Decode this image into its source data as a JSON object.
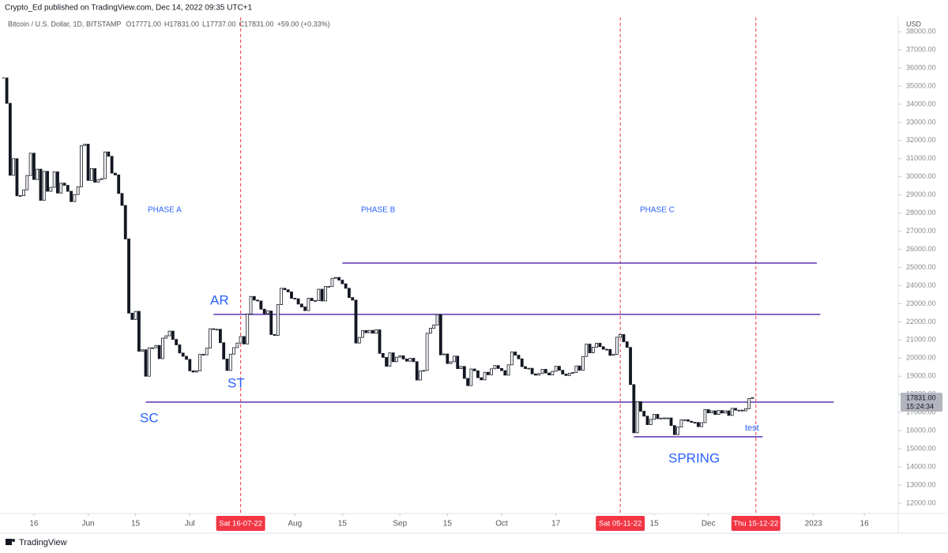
{
  "header": "Crypto_Ed published on TradingView.com, Dec 14, 2022 09:35 UTC+1",
  "footer": "TradingView",
  "chart_data": {
    "type": "candlestick",
    "legend": {
      "ohlc": [
        "O17771.00",
        "H17831.00",
        "L17737.00",
        "C17831.00"
      ],
      "change": "+59.00 (+0.33%)"
    },
    "currency": "USD",
    "price_tag": "17831.00",
    "countdown": "15:24:34",
    "color": "#131722",
    "up_fill": "#ffffff",
    "xlim": [
      "2022-05-06",
      "2023-01-26"
    ],
    "ylim": [
      11430,
      38790
    ],
    "grid": false,
    "yticks": [
      {
        "value": 12000,
        "label": "12000.00"
      },
      {
        "value": 13000,
        "label": "13000.00"
      },
      {
        "value": 14000,
        "label": "14000.00"
      },
      {
        "value": 15000,
        "label": "15000.00"
      },
      {
        "value": 16000,
        "label": "16000.00"
      },
      {
        "value": 17000,
        "label": "17000.00"
      },
      {
        "value": 18000,
        "label": "18000.00"
      },
      {
        "value": 19000,
        "label": "19000.00"
      },
      {
        "value": 20000,
        "label": "20000.00"
      },
      {
        "value": 21000,
        "label": "21000.00"
      },
      {
        "value": 22000,
        "label": "22000.00"
      },
      {
        "value": 23000,
        "label": "23000.00"
      },
      {
        "value": 24000,
        "label": "24000.00"
      },
      {
        "value": 25000,
        "label": "25000.00"
      },
      {
        "value": 26000,
        "label": "26000.00"
      },
      {
        "value": 27000,
        "label": "27000.00"
      },
      {
        "value": 28000,
        "label": "28000.00"
      },
      {
        "value": 29000,
        "label": "29000.00"
      },
      {
        "value": 30000,
        "label": "30000.00"
      },
      {
        "value": 31000,
        "label": "31000.00"
      },
      {
        "value": 32000,
        "label": "32000.00"
      },
      {
        "value": 33000,
        "label": "33000.00"
      },
      {
        "value": 34000,
        "label": "34000.00"
      },
      {
        "value": 35000,
        "label": "35000.00"
      },
      {
        "value": 36000,
        "label": "36000.00"
      },
      {
        "value": 37000,
        "label": "37000.00"
      },
      {
        "value": 38000,
        "label": "38000.00"
      }
    ],
    "xticks": [
      {
        "value": "2022-05-16",
        "label": "16"
      },
      {
        "value": "2022-06-01",
        "label": "Jun"
      },
      {
        "value": "2022-06-15",
        "label": "15"
      },
      {
        "value": "2022-07-01",
        "label": "Jul"
      },
      {
        "value": "2022-08-01",
        "label": "Aug"
      },
      {
        "value": "2022-08-15",
        "label": "15"
      },
      {
        "value": "2022-09-01",
        "label": "Sep"
      },
      {
        "value": "2022-09-15",
        "label": "15"
      },
      {
        "value": "2022-10-01",
        "label": "Oct"
      },
      {
        "value": "2022-10-17",
        "label": "17"
      },
      {
        "value": "2022-11-15",
        "label": "15"
      },
      {
        "value": "2022-12-01",
        "label": "Dec"
      },
      {
        "value": "2023-01-01",
        "label": "2023"
      },
      {
        "value": "2023-01-16",
        "label": "16"
      }
    ],
    "markers": [
      {
        "x": "2022-07-16",
        "label": "Sat 16-07-22"
      },
      {
        "x": "2022-11-05",
        "label": "Sat 05-11-22"
      },
      {
        "x": "2022-12-15",
        "label": "Thu 15-12-22"
      }
    ],
    "levels": [
      {
        "price": 25240,
        "from": "2022-08-15",
        "to": "2023-01-02",
        "color": "#5e35b1"
      },
      {
        "price": 22410,
        "from": "2022-07-08",
        "to": "2023-01-03",
        "color": "#5e35b1"
      },
      {
        "price": 17575,
        "from": "2022-06-18",
        "to": "2023-01-07",
        "color": "#5e35b1"
      },
      {
        "price": 15660,
        "from": "2022-11-09",
        "to": "2022-12-17",
        "color": "#5e35b1"
      }
    ],
    "annotations": [
      "PHASE A",
      "PHASE B",
      "PHASE C",
      "AR",
      "ST",
      "SC",
      "SPRING",
      "test"
    ],
    "x": [
      "2022-05-07",
      "2022-05-08",
      "2022-05-09",
      "2022-05-10",
      "2022-05-11",
      "2022-05-12",
      "2022-05-13",
      "2022-05-14",
      "2022-05-15",
      "2022-05-16",
      "2022-05-17",
      "2022-05-18",
      "2022-05-19",
      "2022-05-20",
      "2022-05-21",
      "2022-05-22",
      "2022-05-23",
      "2022-05-24",
      "2022-05-25",
      "2022-05-26",
      "2022-05-27",
      "2022-05-28",
      "2022-05-29",
      "2022-05-30",
      "2022-05-31",
      "2022-06-01",
      "2022-06-02",
      "2022-06-03",
      "2022-06-04",
      "2022-06-05",
      "2022-06-06",
      "2022-06-07",
      "2022-06-08",
      "2022-06-09",
      "2022-06-10",
      "2022-06-11",
      "2022-06-12",
      "2022-06-13",
      "2022-06-14",
      "2022-06-15",
      "2022-06-16",
      "2022-06-17",
      "2022-06-18",
      "2022-06-19",
      "2022-06-20",
      "2022-06-21",
      "2022-06-22",
      "2022-06-23",
      "2022-06-24",
      "2022-06-25",
      "2022-06-26",
      "2022-06-27",
      "2022-06-28",
      "2022-06-29",
      "2022-06-30",
      "2022-07-01",
      "2022-07-02",
      "2022-07-03",
      "2022-07-04",
      "2022-07-05",
      "2022-07-06",
      "2022-07-07",
      "2022-07-08",
      "2022-07-09",
      "2022-07-10",
      "2022-07-11",
      "2022-07-12",
      "2022-07-13",
      "2022-07-14",
      "2022-07-15",
      "2022-07-16",
      "2022-07-17",
      "2022-07-18",
      "2022-07-19",
      "2022-07-20",
      "2022-07-21",
      "2022-07-22",
      "2022-07-23",
      "2022-07-24",
      "2022-07-25",
      "2022-07-26",
      "2022-07-27",
      "2022-07-28",
      "2022-07-29",
      "2022-07-30",
      "2022-07-31",
      "2022-08-01",
      "2022-08-02",
      "2022-08-03",
      "2022-08-04",
      "2022-08-05",
      "2022-08-06",
      "2022-08-07",
      "2022-08-08",
      "2022-08-09",
      "2022-08-10",
      "2022-08-11",
      "2022-08-12",
      "2022-08-13",
      "2022-08-14",
      "2022-08-15",
      "2022-08-16",
      "2022-08-17",
      "2022-08-18",
      "2022-08-19",
      "2022-08-20",
      "2022-08-21",
      "2022-08-22",
      "2022-08-23",
      "2022-08-24",
      "2022-08-25",
      "2022-08-26",
      "2022-08-27",
      "2022-08-28",
      "2022-08-29",
      "2022-08-30",
      "2022-08-31",
      "2022-09-01",
      "2022-09-02",
      "2022-09-03",
      "2022-09-04",
      "2022-09-05",
      "2022-09-06",
      "2022-09-07",
      "2022-09-08",
      "2022-09-09",
      "2022-09-10",
      "2022-09-11",
      "2022-09-12",
      "2022-09-13",
      "2022-09-14",
      "2022-09-15",
      "2022-09-16",
      "2022-09-17",
      "2022-09-18",
      "2022-09-19",
      "2022-09-20",
      "2022-09-21",
      "2022-09-22",
      "2022-09-23",
      "2022-09-24",
      "2022-09-25",
      "2022-09-26",
      "2022-09-27",
      "2022-09-28",
      "2022-09-29",
      "2022-09-30",
      "2022-10-01",
      "2022-10-02",
      "2022-10-03",
      "2022-10-04",
      "2022-10-05",
      "2022-10-06",
      "2022-10-07",
      "2022-10-08",
      "2022-10-09",
      "2022-10-10",
      "2022-10-11",
      "2022-10-12",
      "2022-10-13",
      "2022-10-14",
      "2022-10-15",
      "2022-10-16",
      "2022-10-17",
      "2022-10-18",
      "2022-10-19",
      "2022-10-20",
      "2022-10-21",
      "2022-10-22",
      "2022-10-23",
      "2022-10-24",
      "2022-10-25",
      "2022-10-26",
      "2022-10-27",
      "2022-10-28",
      "2022-10-29",
      "2022-10-30",
      "2022-10-31",
      "2022-11-01",
      "2022-11-02",
      "2022-11-03",
      "2022-11-04",
      "2022-11-05",
      "2022-11-06",
      "2022-11-07",
      "2022-11-08",
      "2022-11-09",
      "2022-11-10",
      "2022-11-11",
      "2022-11-12",
      "2022-11-13",
      "2022-11-14",
      "2022-11-15",
      "2022-11-16",
      "2022-11-17",
      "2022-11-18",
      "2022-11-19",
      "2022-11-20",
      "2022-11-21",
      "2022-11-22",
      "2022-11-23",
      "2022-11-24",
      "2022-11-25",
      "2022-11-26",
      "2022-11-27",
      "2022-11-28",
      "2022-11-29",
      "2022-11-30",
      "2022-12-01",
      "2022-12-02",
      "2022-12-03",
      "2022-12-04",
      "2022-12-05",
      "2022-12-06",
      "2022-12-07",
      "2022-12-08",
      "2022-12-09",
      "2022-12-10",
      "2022-12-11",
      "2022-12-12",
      "2022-12-13",
      "2022-12-14"
    ],
    "series": [
      {
        "name": "Bitcoin / U.S. Dollar, 1D, BITSTAMP",
        "color": "#131722",
        "values": [
          35450,
          34050,
          30080,
          31000,
          28950,
          28960,
          29280,
          30070,
          31300,
          29850,
          30420,
          28700,
          30300,
          29200,
          29420,
          30270,
          29100,
          29650,
          29530,
          29200,
          28630,
          29020,
          29450,
          31720,
          31800,
          29800,
          30450,
          29700,
          29850,
          29900,
          31370,
          31130,
          30200,
          30100,
          29080,
          28420,
          26570,
          22480,
          22130,
          22580,
          20380,
          20460,
          19000,
          20570,
          20570,
          20700,
          19970,
          21100,
          21230,
          21490,
          21030,
          20730,
          20280,
          20100,
          19930,
          19300,
          19230,
          19300,
          20210,
          20180,
          20550,
          21620,
          21590,
          21590,
          20850,
          19950,
          19320,
          20220,
          20580,
          20830,
          21190,
          20780,
          22430,
          23400,
          23200,
          23150,
          22700,
          22450,
          22600,
          21300,
          21250,
          22950,
          23850,
          23770,
          23650,
          23300,
          23270,
          22980,
          22820,
          22620,
          23300,
          23170,
          23170,
          23800,
          23150,
          23950,
          23950,
          24400,
          24450,
          24300,
          24100,
          23850,
          23340,
          23200,
          20830,
          21140,
          21520,
          21400,
          21530,
          21370,
          21560,
          20260,
          20040,
          19550,
          20290,
          19800,
          20050,
          20130,
          19950,
          19830,
          19990,
          19800,
          18790,
          19290,
          19320,
          21370,
          21650,
          21830,
          22400,
          20180,
          20230,
          19700,
          19800,
          20110,
          19420,
          19540,
          18880,
          18480,
          19400,
          19300,
          18920,
          18800,
          19220,
          19080,
          19410,
          19590,
          19430,
          19310,
          19060,
          19630,
          20340,
          20160,
          19960,
          19530,
          19420,
          19440,
          19130,
          19060,
          19150,
          19380,
          19180,
          19070,
          19270,
          19550,
          19330,
          19120,
          19040,
          19170,
          19210,
          19570,
          19330,
          20090,
          20770,
          20290,
          20600,
          20820,
          20630,
          20490,
          20480,
          20150,
          20210,
          21150,
          21300,
          20900,
          20590,
          18540,
          15880,
          17600,
          17070,
          16800,
          16330,
          16620,
          16900,
          16660,
          16690,
          16700,
          16700,
          16280,
          15780,
          16200,
          16600,
          16600,
          16520,
          16460,
          16450,
          16220,
          16440,
          17160,
          16980,
          17090,
          16890,
          17110,
          16970,
          17090,
          16840,
          17230,
          17130,
          17130,
          17090,
          17210,
          17772,
          17831
        ]
      }
    ]
  }
}
